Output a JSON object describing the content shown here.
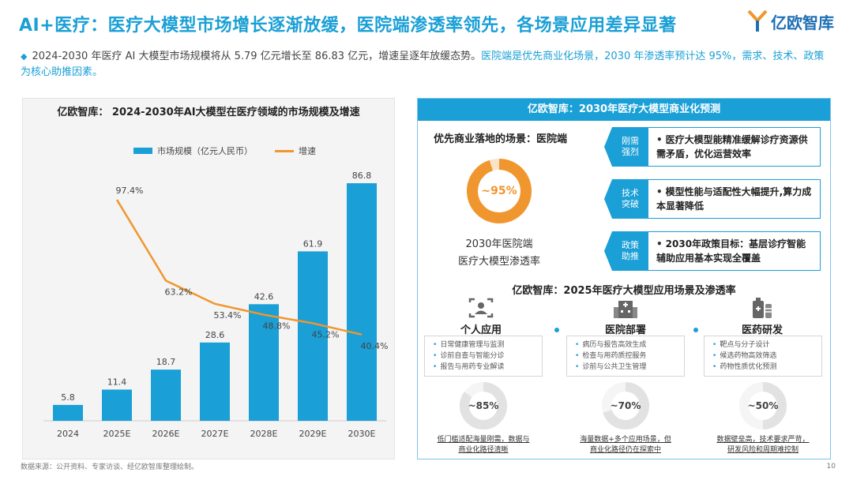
{
  "header": {
    "title": "AI+医疗：医疗大模型市场增长逐渐放缓，医院端渗透率领先，各场景应用差异显著",
    "logo_text": "亿欧智库"
  },
  "intro": {
    "text_plain": "2024-2030 年医疗 AI 大模型市场规模将从 5.79 亿元增长至 86.83 亿元，增速呈逐年放缓态势。",
    "text_highlight": "医院端是优先商业化场景，2030 年渗透率预计达 95%，需求、技术、政策为核心助推因素。"
  },
  "chart_data": {
    "type": "bar",
    "title": "亿欧智库： 2024-2030年AI大模型在医疗领域的市场规模及增速",
    "categories": [
      "2024",
      "2025E",
      "2026E",
      "2027E",
      "2028E",
      "2029E",
      "2030E"
    ],
    "series": [
      {
        "name": "市场规模（亿元人民币）",
        "type": "bar",
        "values": [
          5.8,
          11.4,
          18.7,
          28.6,
          42.6,
          61.9,
          86.8
        ],
        "color": "#1a9fd6"
      },
      {
        "name": "增速",
        "type": "line",
        "values": [
          null,
          97.4,
          63.2,
          53.4,
          48.8,
          45.2,
          40.4
        ],
        "labels": [
          "",
          "97.4%",
          "63.2%",
          "53.4%",
          "48.8%",
          "45.2%",
          "40.4%"
        ],
        "color": "#f0962e"
      }
    ],
    "legend_position": "top",
    "grid": false
  },
  "right_panel": {
    "header": "亿欧智库：2030年医疗大模型商业化预测",
    "priority_label": "优先商业落地的场景：医院端",
    "hospital_pct": "~95%",
    "hospital_value": 95,
    "caption_line1": "2030年医院端",
    "caption_line2": "医疗大模型渗透率",
    "drivers": [
      {
        "tag_line1": "刚需",
        "tag_line2": "强烈",
        "text": "医疗大模型能精准缓解诊疗资源供需矛盾，优化运营效率"
      },
      {
        "tag_line1": "技术",
        "tag_line2": "突破",
        "text": "模型性能与适配性大幅提升,算力成本显著降低"
      },
      {
        "tag_line1": "政策",
        "tag_line2": "助推",
        "text": "2030年政策目标：基层诊疗智能辅助应用基本实现全覆盖"
      }
    ],
    "scenes_title": "亿欧智库：2025年医疗大模型应用场景及渗透率",
    "scenes": [
      {
        "name": "个人应用",
        "items": [
          "日常健康管理与监测",
          "诊前自查与智能分诊",
          "报告与用药专业解读"
        ],
        "pct": "~85%",
        "value": 85,
        "note_line1": "低门槛适配海量刚需，数据与",
        "note_line2": "商业化路径清晰"
      },
      {
        "name": "医院部署",
        "items": [
          "病历与报告高效生成",
          "检查与用药质控服务",
          "诊前与公共卫生管理"
        ],
        "pct": "~70%",
        "value": 70,
        "note_line1": "海量数据+多个应用场景，但",
        "note_line2": "商业化路径仍在探索中"
      },
      {
        "name": "医药研发",
        "items": [
          "靶点与分子设计",
          "候选药物高效筛选",
          "药物性质优化预测"
        ],
        "pct": "~50%",
        "value": 50,
        "note_line1": "数据壁垒高，技术要求严苛，",
        "note_line2": "研发风险和周期难控制"
      }
    ]
  },
  "footer": {
    "source": "数据来源：公开资料、专家访谈、经亿欧智库整理绘制。",
    "page": "10"
  }
}
